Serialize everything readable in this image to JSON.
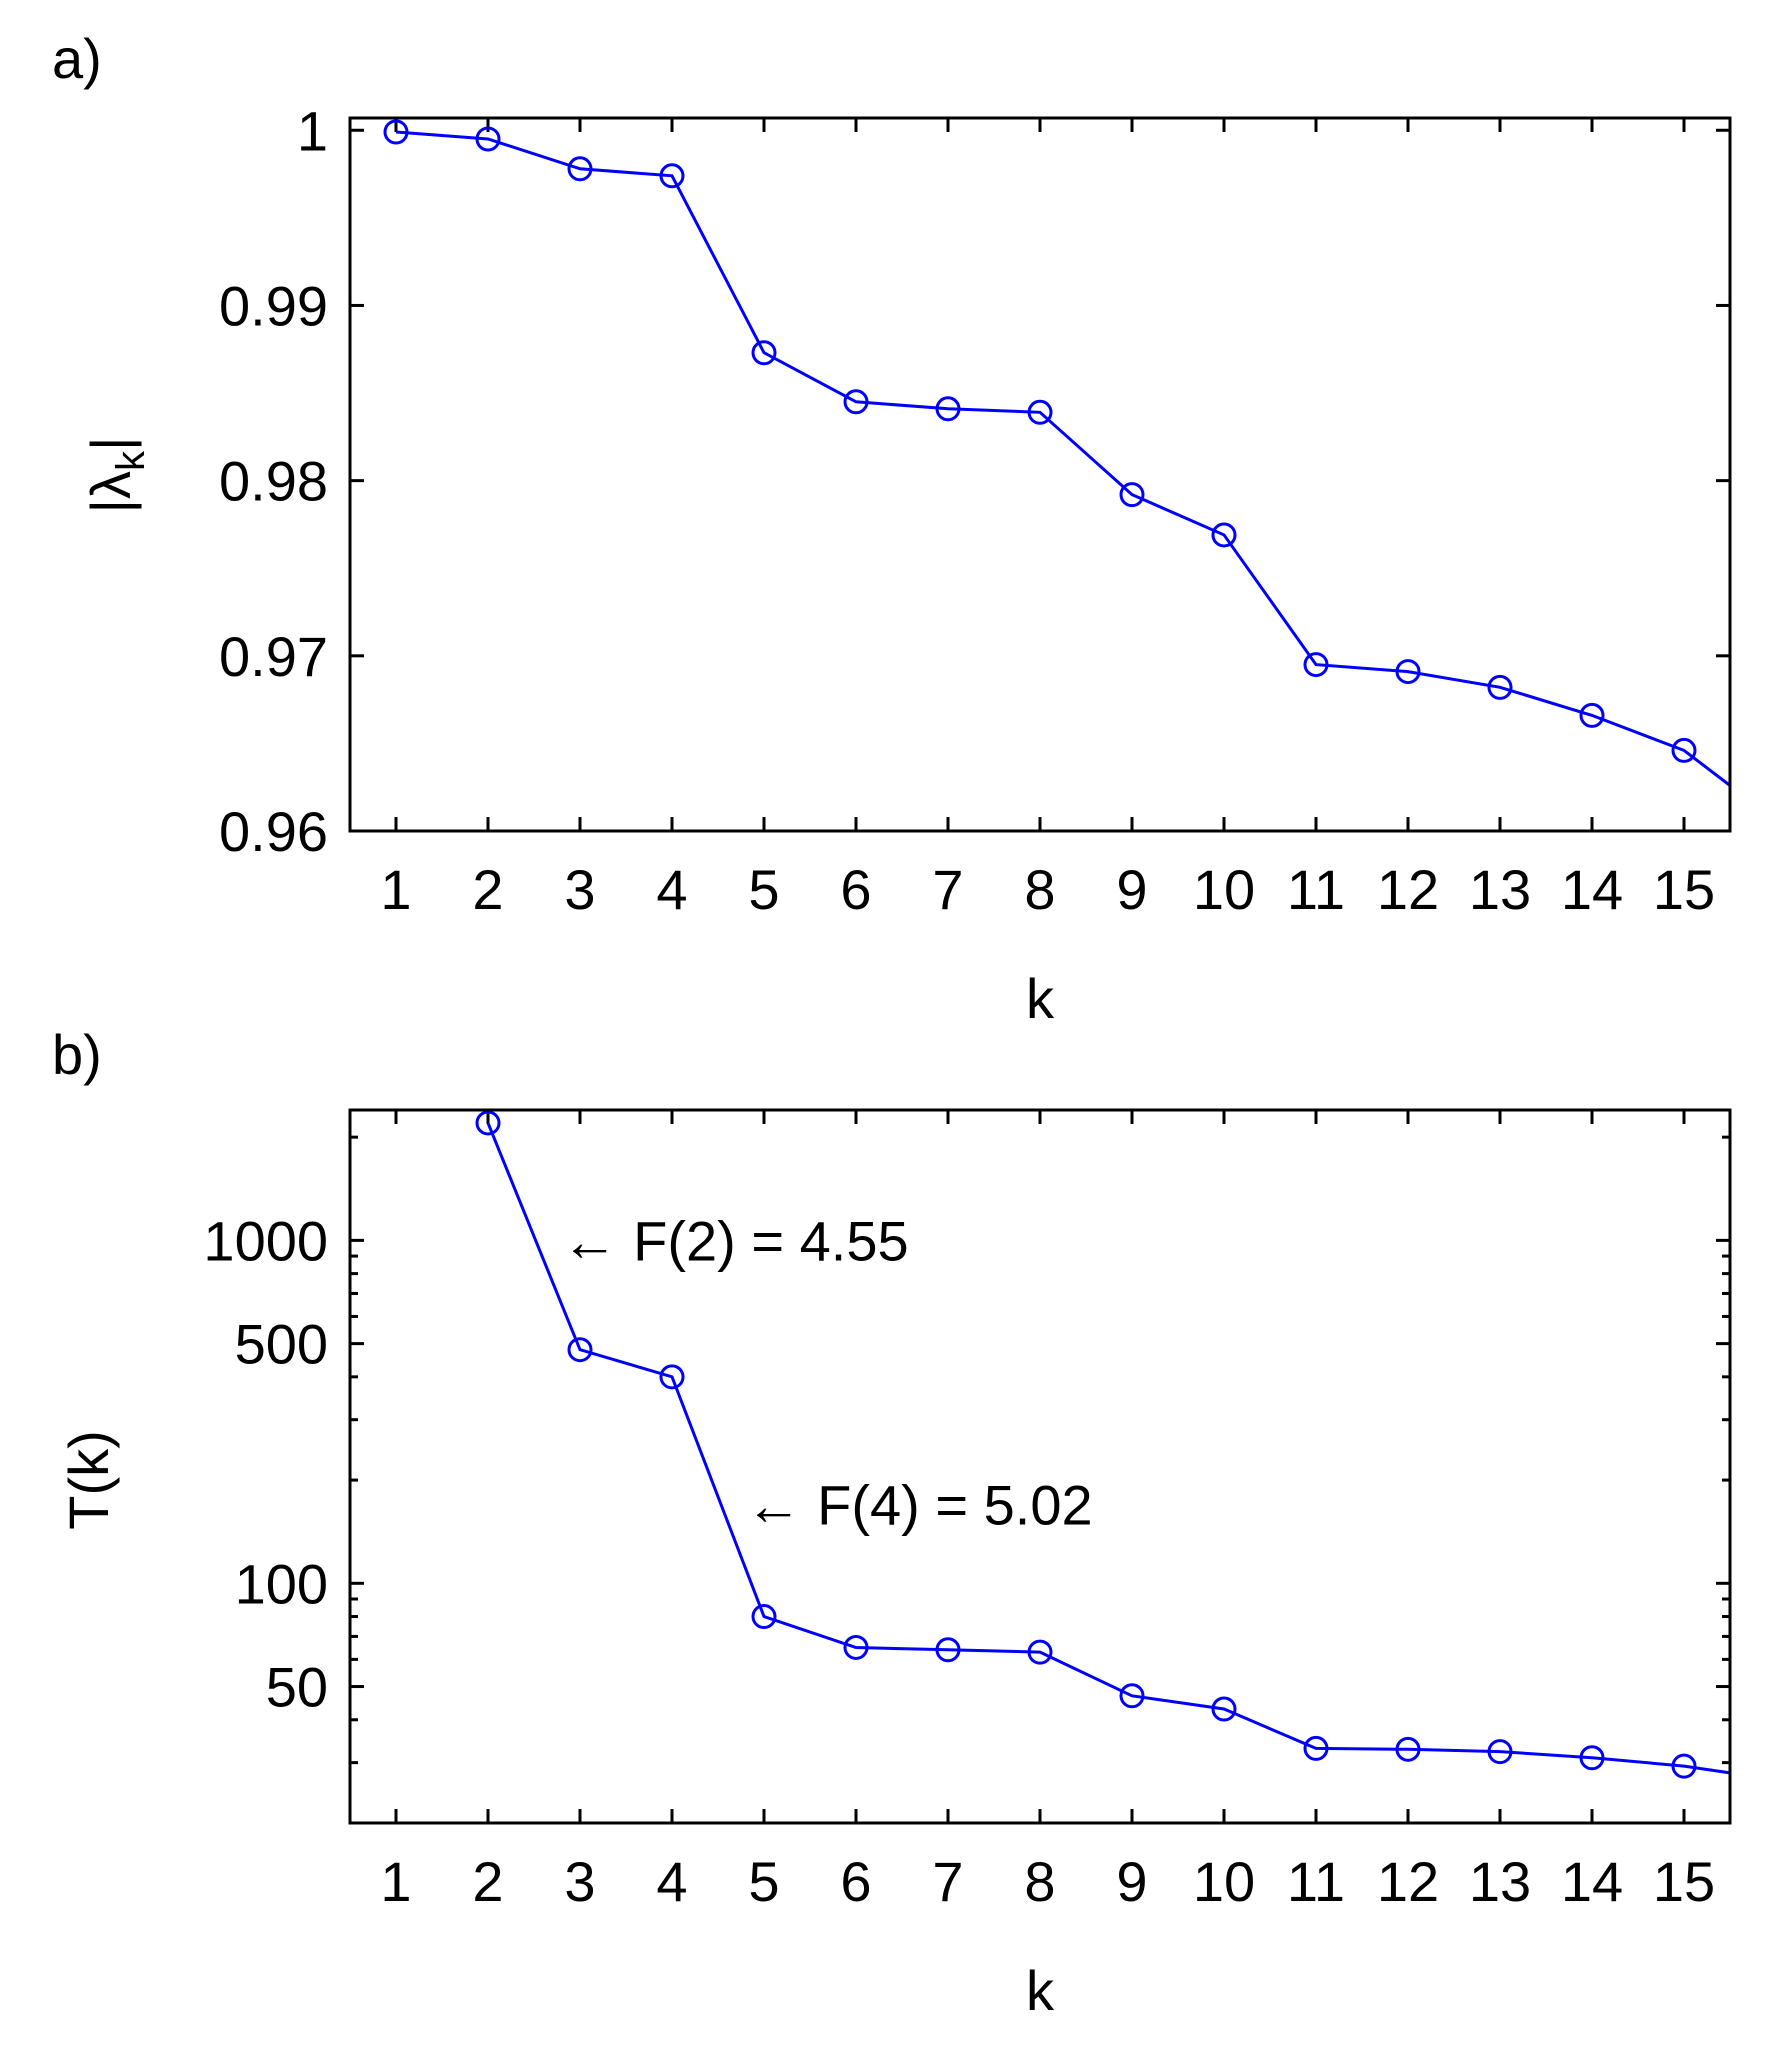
{
  "chart_data": [
    {
      "panel_label": "a)",
      "type": "line",
      "xlabel": "k",
      "ylabel_main": "|λ",
      "ylabel_sub": "k",
      "ylabel_close": "|",
      "x": [
        1,
        2,
        3,
        4,
        5,
        6,
        7,
        8,
        9,
        10,
        11,
        12,
        13,
        14,
        15
      ],
      "values": [
        0.9999,
        0.9995,
        0.9978,
        0.9974,
        0.9873,
        0.9845,
        0.9841,
        0.9839,
        0.9792,
        0.9769,
        0.9695,
        0.9691,
        0.9682,
        0.9666,
        0.9646
      ],
      "line_end": {
        "x": 15.5,
        "y": 0.9626
      },
      "xlim": [
        0.5,
        15.5
      ],
      "ylim": [
        0.96,
        1.0007
      ],
      "yticks": [
        0.96,
        0.97,
        0.98,
        0.99,
        1.0
      ],
      "ytick_labels": [
        "0.96",
        "0.97",
        "0.98",
        "0.99",
        "1"
      ],
      "xtick_labels": [
        "1",
        "2",
        "3",
        "4",
        "5",
        "6",
        "7",
        "8",
        "9",
        "10",
        "11",
        "12",
        "13",
        "14",
        "15"
      ],
      "scale": "linear",
      "color": "#0000FF",
      "marker": "circle"
    },
    {
      "panel_label": "b)",
      "type": "line",
      "xlabel": "k",
      "ylabel": "T(k)",
      "x": [
        2,
        3,
        4,
        5,
        6,
        7,
        8,
        9,
        10,
        11,
        12,
        13,
        14,
        15
      ],
      "values": [
        2200,
        480,
        400,
        80,
        65,
        64,
        63,
        47,
        43,
        33,
        32.8,
        32.3,
        31,
        29.3
      ],
      "line_start": {
        "x": 2,
        "y": 2200
      },
      "line_end": {
        "x": 15.5,
        "y": 28
      },
      "xlim": [
        0.5,
        15.5
      ],
      "ylim": [
        20,
        2400
      ],
      "yscale": "log",
      "yticks": [
        50,
        100,
        500,
        1000
      ],
      "ytick_labels": [
        "50",
        "100",
        "500",
        "1000"
      ],
      "xtick_labels": [
        "1",
        "2",
        "3",
        "4",
        "5",
        "6",
        "7",
        "8",
        "9",
        "10",
        "11",
        "12",
        "13",
        "14",
        "15"
      ],
      "color": "#0000FF",
      "marker": "circle",
      "annotations": [
        {
          "text": "← F(2) = 4.55",
          "x": 2.8,
          "y": 1000
        },
        {
          "text": "← F(4) = 5.02",
          "x": 4.8,
          "y": 170
        }
      ]
    }
  ]
}
